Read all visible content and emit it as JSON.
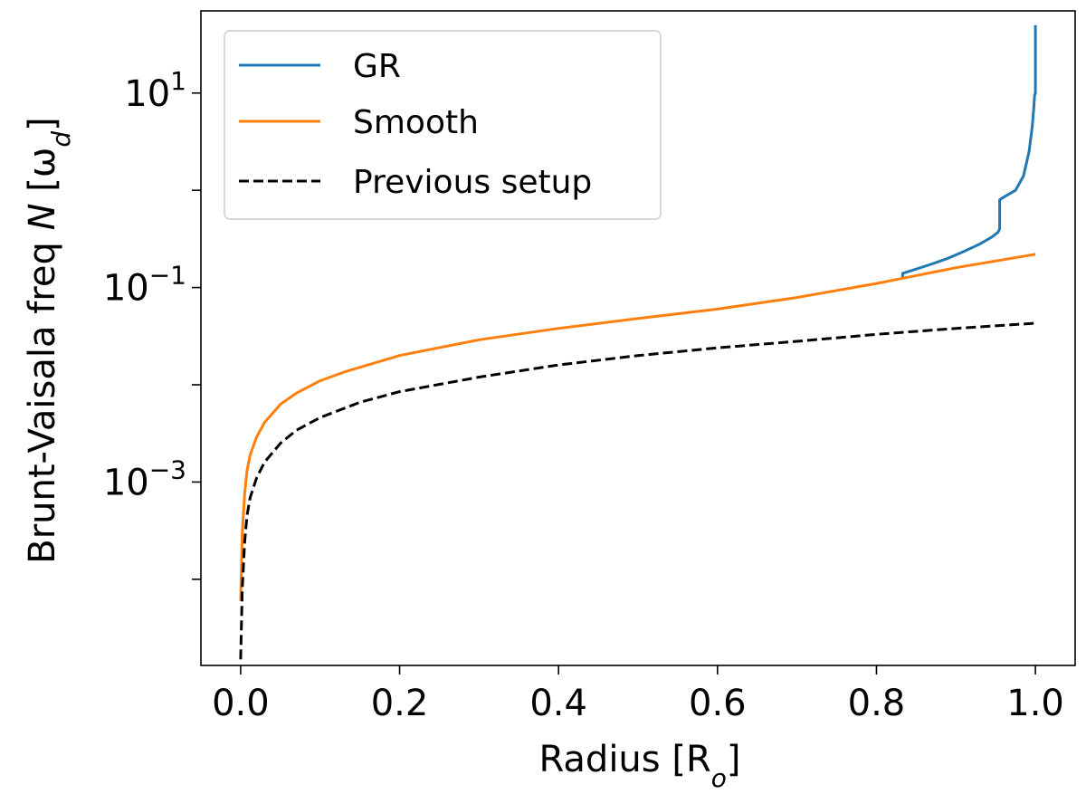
{
  "chart_data": {
    "type": "line",
    "xlabel": "Radius [R",
    "xlabel_sub": "o",
    "xlabel_tail": "]",
    "ylabel": "Brunt-Vaisala freq ",
    "ylabel_var": "N",
    "ylabel_unit_open": " [ω",
    "ylabel_sub": "d",
    "ylabel_unit_close": "]",
    "xlim": [
      -0.05,
      1.05
    ],
    "ylim": [
      1.3e-05,
      70
    ],
    "yscale": "log",
    "grid": false,
    "legend_position": "top-left",
    "x_ticks": [
      0.0,
      0.2,
      0.4,
      0.6,
      0.8,
      1.0
    ],
    "x_tick_labels": [
      "0.0",
      "0.2",
      "0.4",
      "0.6",
      "0.8",
      "1.0"
    ],
    "y_ticks": [
      {
        "value": 10,
        "base": "10",
        "exp": "1"
      },
      {
        "value": 0.1,
        "base": "10",
        "exp": "−1"
      },
      {
        "value": 0.001,
        "base": "10",
        "exp": "−3"
      }
    ],
    "series": [
      {
        "name": "GR",
        "color": "#1f77b4",
        "dash": "solid",
        "x": [
          0.833,
          0.833,
          0.85,
          0.87,
          0.89,
          0.91,
          0.93,
          0.945,
          0.953,
          0.955,
          0.955,
          0.96,
          0.975,
          0.985,
          0.992,
          0.996,
          0.998,
          0.999,
          1.0,
          1.0
        ],
        "y": [
          0.125,
          0.14,
          0.155,
          0.175,
          0.2,
          0.235,
          0.28,
          0.33,
          0.37,
          0.4,
          0.8,
          0.85,
          1.0,
          1.4,
          2.5,
          4.5,
          7.0,
          9.5,
          10,
          50
        ]
      },
      {
        "name": "Smooth",
        "color": "#ff7f0e",
        "dash": "solid",
        "x": [
          0.0,
          0.002,
          0.005,
          0.008,
          0.012,
          0.02,
          0.03,
          0.05,
          0.07,
          0.1,
          0.13,
          0.2,
          0.3,
          0.4,
          0.5,
          0.6,
          0.7,
          0.8,
          0.9,
          1.0
        ],
        "y": [
          6e-05,
          0.0003,
          0.00075,
          0.0013,
          0.0019,
          0.0029,
          0.0041,
          0.0063,
          0.0082,
          0.011,
          0.0135,
          0.02,
          0.029,
          0.038,
          0.048,
          0.06,
          0.079,
          0.11,
          0.16,
          0.22
        ]
      },
      {
        "name": "Previous setup",
        "color": "#000000",
        "dash": "dashed",
        "x": [
          0.0,
          0.002,
          0.005,
          0.008,
          0.012,
          0.02,
          0.03,
          0.05,
          0.07,
          0.1,
          0.15,
          0.2,
          0.3,
          0.4,
          0.5,
          0.6,
          0.7,
          0.8,
          0.9,
          1.0
        ],
        "y": [
          1.5e-05,
          8e-05,
          0.00024,
          0.00045,
          0.00069,
          0.0011,
          0.0016,
          0.0025,
          0.0034,
          0.0046,
          0.0066,
          0.0085,
          0.012,
          0.016,
          0.02,
          0.024,
          0.028,
          0.033,
          0.038,
          0.043
        ]
      }
    ]
  }
}
